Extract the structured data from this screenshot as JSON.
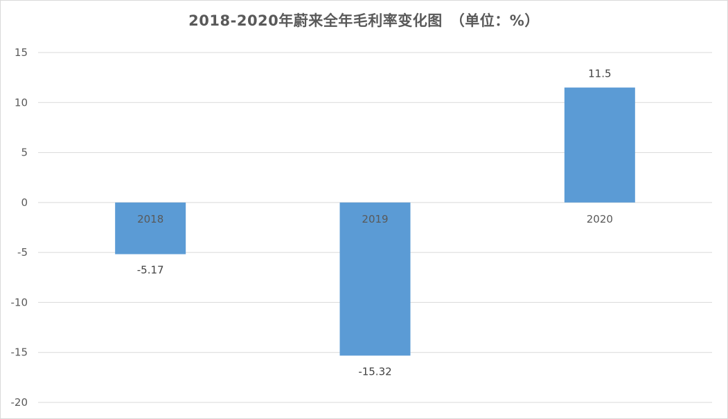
{
  "chart_data": {
    "type": "bar",
    "title": "2018-2020年蔚来全年毛利率变化图　（单位：%）",
    "categories": [
      "2018",
      "2019",
      "2020"
    ],
    "series": [
      {
        "values": [
          -5.17,
          -15.32,
          11.5
        ],
        "data_labels": [
          "-5.17",
          "-15.32",
          "11.5"
        ]
      }
    ],
    "xlabel": "",
    "ylabel": "",
    "ylim": [
      -20,
      15
    ],
    "yticks": [
      15,
      10,
      5,
      0,
      -5,
      -10,
      -15,
      -20
    ],
    "grid": true,
    "legend": "none",
    "colors": {
      "bar": "#5b9bd5",
      "grid": "#d9d9d9",
      "text": "#595959"
    }
  }
}
